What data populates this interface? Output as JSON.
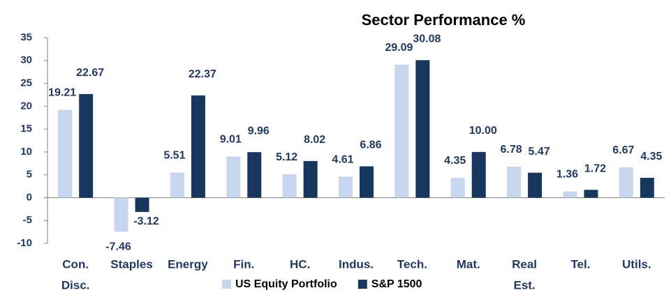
{
  "chart_data": {
    "type": "bar",
    "title": "Sector Performance %",
    "categories": [
      [
        "Con.",
        "Disc."
      ],
      [
        "Staples"
      ],
      [
        "Energy"
      ],
      [
        "Fin."
      ],
      [
        "HC."
      ],
      [
        "Indus."
      ],
      [
        "Tech."
      ],
      [
        "Mat."
      ],
      [
        "Real",
        "Est."
      ],
      [
        "Tel."
      ],
      [
        "Utils."
      ]
    ],
    "series": [
      {
        "name": "US Equity Portfolio",
        "color": "#c6d6ee",
        "values": [
          19.21,
          -7.46,
          5.51,
          9.01,
          5.12,
          4.61,
          29.09,
          4.35,
          6.78,
          1.36,
          6.67
        ]
      },
      {
        "name": "S&P 1500",
        "color": "#17375e",
        "values": [
          22.67,
          -3.12,
          22.37,
          9.96,
          8.02,
          6.86,
          30.08,
          10.0,
          5.47,
          1.72,
          4.35
        ],
        "value_labels": [
          "22.67",
          "-3.12",
          "22.37",
          "9.96",
          "8.02",
          "6.86",
          "30.08",
          "10.00",
          "5.47",
          "1.72",
          "4.35"
        ]
      }
    ],
    "ylim": [
      -10,
      35
    ],
    "yticks": [
      -10,
      -5,
      0,
      5,
      10,
      15,
      20,
      25,
      30,
      35
    ],
    "legend": "bottom"
  }
}
